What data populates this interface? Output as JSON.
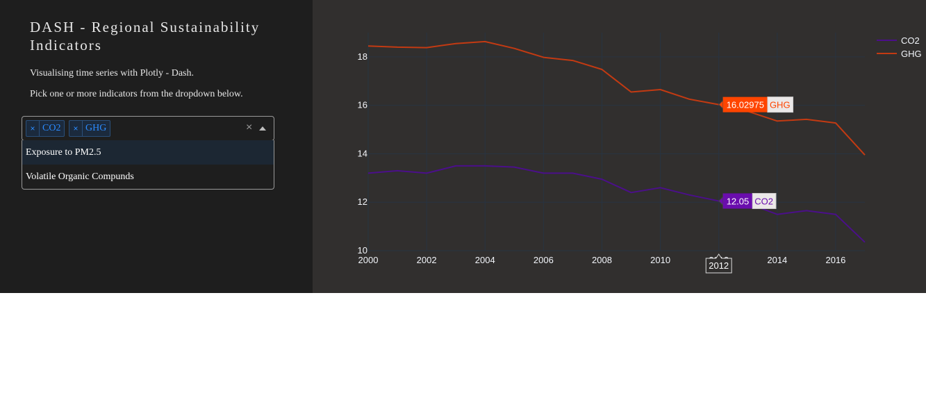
{
  "sidebar": {
    "title": "DASH - Regional Sustainability Indicators",
    "subtitle": "Visualising time series with Plotly - Dash.",
    "instruction": "Pick one or more indicators from the dropdown below.",
    "dropdown": {
      "selected": [
        {
          "remove": "×",
          "label": "CO2"
        },
        {
          "remove": "×",
          "label": "GHG"
        }
      ],
      "clear": "×",
      "options": [
        "Exposure to PM2.5",
        "Volatile Organic Compunds"
      ]
    }
  },
  "chart_data": {
    "type": "line",
    "x": [
      2000,
      2001,
      2002,
      2003,
      2004,
      2005,
      2006,
      2007,
      2008,
      2009,
      2010,
      2011,
      2012,
      2013,
      2014,
      2015,
      2016,
      2017
    ],
    "series": [
      {
        "name": "CO2",
        "color": "#4b0f8a",
        "values": [
          13.2,
          13.3,
          13.2,
          13.5,
          13.5,
          13.45,
          13.2,
          13.2,
          12.95,
          12.4,
          12.6,
          12.3,
          12.05,
          11.95,
          11.5,
          11.65,
          11.5,
          10.35
        ]
      },
      {
        "name": "GHG",
        "color": "#c33a12",
        "values": [
          18.45,
          18.4,
          18.38,
          18.55,
          18.63,
          18.35,
          17.98,
          17.85,
          17.48,
          16.55,
          16.65,
          16.25,
          16.02975,
          15.75,
          15.35,
          15.42,
          15.27,
          13.95
        ]
      }
    ],
    "ylim": [
      10,
      19
    ],
    "x_ticks": [
      2000,
      2002,
      2004,
      2006,
      2008,
      2010,
      2012,
      2014,
      2016
    ],
    "x_tick_labels": [
      "2000",
      "2002",
      "2004",
      "2006",
      "2008",
      "2010",
      "2012",
      "2014",
      "2016"
    ],
    "y_ticks": [
      10,
      12,
      14,
      16,
      18
    ],
    "y_tick_labels": [
      "10",
      "12",
      "14",
      "16",
      "18"
    ],
    "legend": "top-right",
    "grid": true,
    "hover": {
      "x": 2012,
      "x_label": "2012",
      "labels": [
        {
          "series": "GHG",
          "value": 16.02975,
          "value_text": "16.02975",
          "name": "GHG",
          "box_color": "#ff4500",
          "text_color": "#ff4500"
        },
        {
          "series": "CO2",
          "value": 12.05,
          "value_text": "12.05",
          "name": "CO2",
          "box_color": "#6a0dad",
          "text_color": "#6a0dad"
        }
      ]
    }
  }
}
